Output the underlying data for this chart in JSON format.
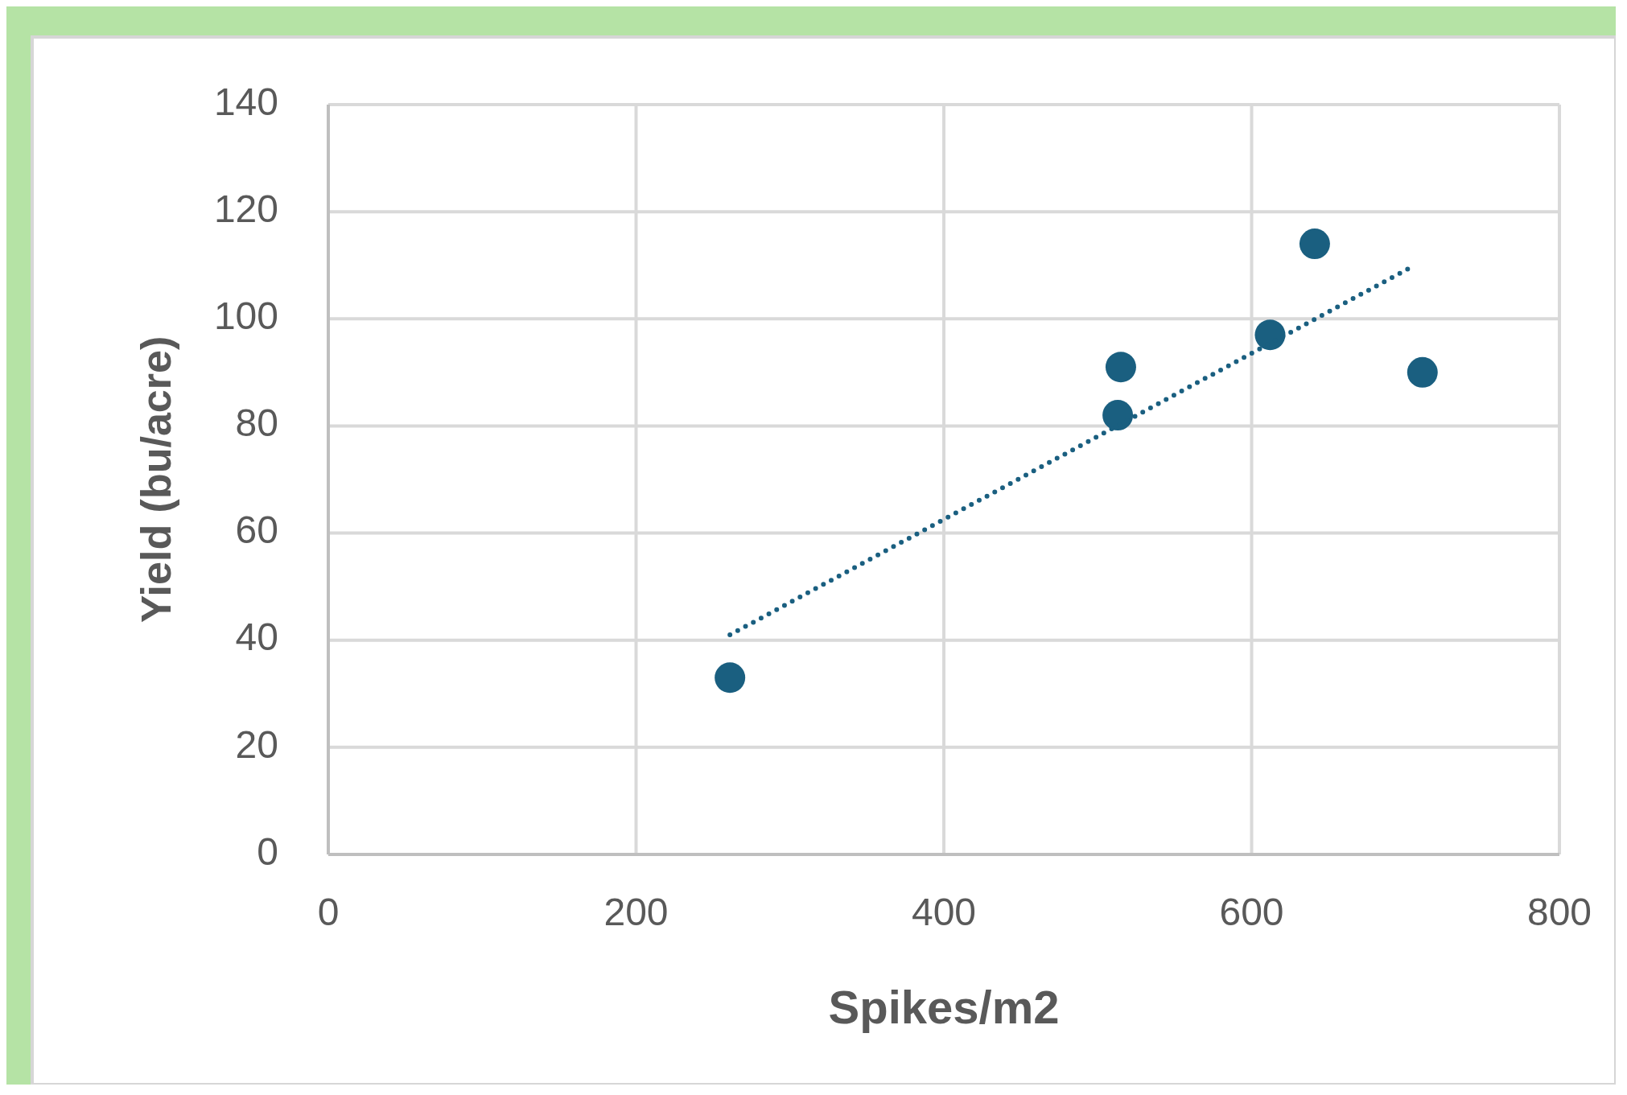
{
  "chart_data": {
    "type": "scatter",
    "xlabel": "Spikes/m2",
    "ylabel": "Yield (bu/acre)",
    "xlim": [
      0,
      800
    ],
    "xticks": [
      0,
      200,
      400,
      600,
      800
    ],
    "ylim": [
      0,
      140
    ],
    "yticks": [
      0,
      20,
      40,
      60,
      80,
      100,
      120,
      140
    ],
    "grid": true,
    "series": [
      {
        "color": "#1a5f80",
        "marker": "circle",
        "x": [
          261,
          515,
          513,
          612,
          641,
          711
        ],
        "values": [
          33,
          91,
          82,
          97,
          114,
          90
        ]
      },
      {
        "type": "line",
        "color": "#1a5f80",
        "marker": "none",
        "line_style": "dotted",
        "x": [
          261,
          706
        ],
        "values": [
          41,
          110
        ]
      }
    ]
  }
}
